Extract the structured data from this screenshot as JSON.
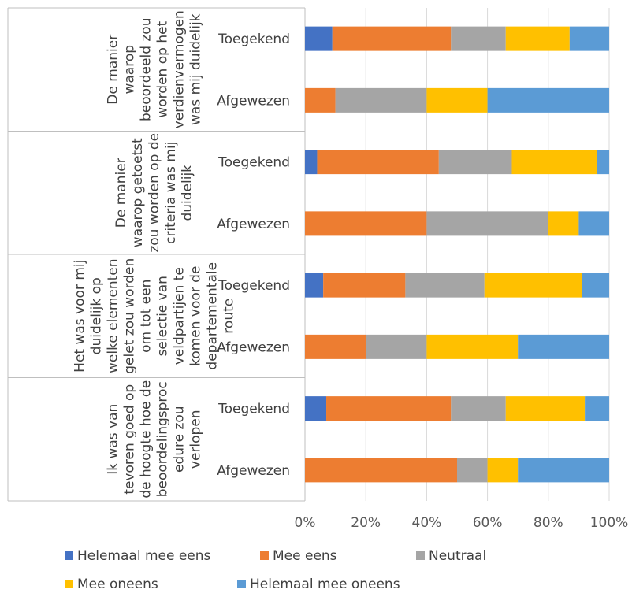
{
  "chart_data": {
    "type": "bar",
    "orientation": "horizontal",
    "stacked": "percent",
    "xlim": [
      0,
      100
    ],
    "x_ticks": [
      "0%",
      "20%",
      "40%",
      "60%",
      "80%",
      "100%"
    ],
    "grid": true,
    "legend_position": "bottom",
    "series": [
      {
        "name": "Helemaal mee eens",
        "color": "#4472C4"
      },
      {
        "name": "Mee eens",
        "color": "#ED7D31"
      },
      {
        "name": "Neutraal",
        "color": "#A5A5A5"
      },
      {
        "name": "Mee oneens",
        "color": "#FFC000"
      },
      {
        "name": "Helemaal mee oneens",
        "color": "#5B9BD5"
      }
    ],
    "groups": [
      {
        "label_lines": [
          "De manier",
          "waarop",
          "beoordeeld zou",
          "worden op het",
          "verdienvermogen",
          "was mij duidelijk"
        ],
        "bars": [
          {
            "category": "Toegekend",
            "values": [
              9,
              39,
              18,
              21,
              13
            ]
          },
          {
            "category": "Afgewezen",
            "values": [
              0,
              10,
              30,
              20,
              40
            ]
          }
        ]
      },
      {
        "label_lines": [
          "De manier",
          "waarop getoetst",
          "zou worden op de",
          "criteria was mij",
          "duidelijk"
        ],
        "bars": [
          {
            "category": "Toegekend",
            "values": [
              4,
              40,
              24,
              28,
              4
            ]
          },
          {
            "category": "Afgewezen",
            "values": [
              0,
              40,
              40,
              10,
              10
            ]
          }
        ]
      },
      {
        "label_lines": [
          "Het was voor mij",
          "duidelijk op",
          "welke elementen",
          "gelet zou worden",
          "om tot een",
          "selectie van",
          "veldpartijen te",
          "komen voor de",
          "departementale",
          "route"
        ],
        "bars": [
          {
            "category": "Toegekend",
            "values": [
              6,
              27,
              26,
              32,
              9
            ]
          },
          {
            "category": "Afgewezen",
            "values": [
              0,
              20,
              20,
              30,
              30
            ]
          }
        ]
      },
      {
        "label_lines": [
          "Ik was van",
          "tevoren goed op",
          "de hoogte hoe de",
          "beoordelingsproc",
          "edure zou",
          "verlopen"
        ],
        "bars": [
          {
            "category": "Toegekend",
            "values": [
              7,
              41,
              18,
              26,
              8
            ]
          },
          {
            "category": "Afgewezen",
            "values": [
              0,
              50,
              10,
              10,
              30
            ]
          }
        ]
      }
    ]
  }
}
